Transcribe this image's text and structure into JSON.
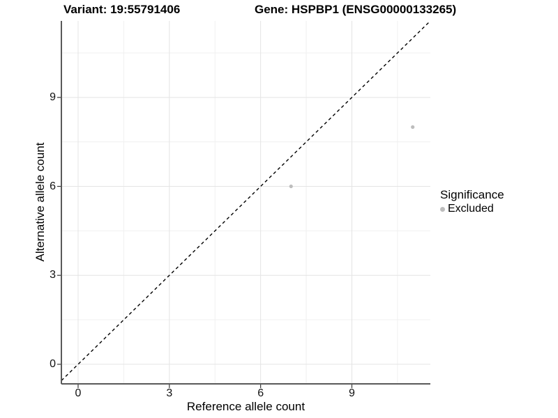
{
  "chart_data": {
    "type": "scatter",
    "title_left": "Variant: 19:55791406",
    "title_right": "Gene: HSPBP1 (ENSG00000133265)",
    "xlabel": "Reference allele count",
    "ylabel": "Alternative allele count",
    "xlim": [
      -0.55,
      11.58
    ],
    "ylim": [
      -0.66,
      11.58
    ],
    "x_ticks": [
      0,
      3,
      6,
      9
    ],
    "y_ticks": [
      0,
      3,
      6,
      9
    ],
    "x_minor_ticks": [
      1.5,
      4.5,
      7.5,
      10.5
    ],
    "y_minor_ticks": [
      1.5,
      4.5,
      7.5,
      10.5
    ],
    "grid": true,
    "series": [
      {
        "name": "Excluded",
        "color": "#bdbdbd",
        "points": [
          {
            "x": 7,
            "y": 6
          },
          {
            "x": 11,
            "y": 8
          }
        ]
      }
    ],
    "reference_line": {
      "type": "identity",
      "style": "dashed",
      "color": "#000000"
    },
    "legend": {
      "title": "Significance",
      "position": "right",
      "entries": [
        {
          "label": "Excluded",
          "color": "#bdbdbd"
        }
      ]
    },
    "colors": {
      "grid_major": "#e4e4e4",
      "grid_minor": "#f0f0f0",
      "axis_line": "#595959",
      "tick_mark": "#333333",
      "point": "#bdbdbd",
      "text": "#000000"
    }
  }
}
